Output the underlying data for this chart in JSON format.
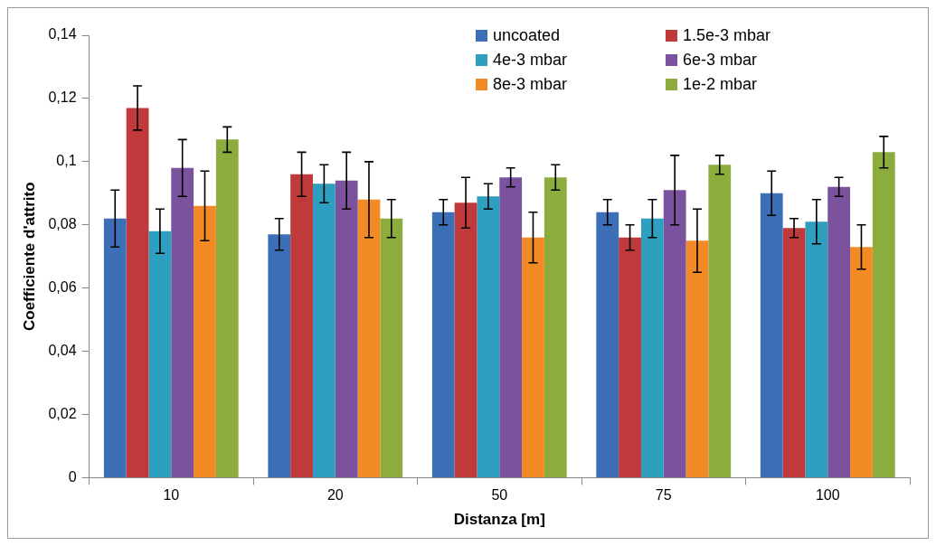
{
  "chart_data": {
    "type": "bar",
    "xlabel": "Distanza [m]",
    "ylabel": "Coefficiente d'attrito",
    "categories": [
      "10",
      "20",
      "50",
      "75",
      "100"
    ],
    "series": [
      {
        "name": "uncoated",
        "color": "#3d6fb6",
        "values": [
          0.082,
          0.077,
          0.084,
          0.084,
          0.09
        ],
        "errors": [
          0.009,
          0.005,
          0.004,
          0.004,
          0.007
        ]
      },
      {
        "name": "1.5e-3 mbar",
        "color": "#c0393b",
        "values": [
          0.117,
          0.096,
          0.087,
          0.076,
          0.079
        ],
        "errors": [
          0.007,
          0.007,
          0.008,
          0.004,
          0.003
        ]
      },
      {
        "name": "4e-3 mbar",
        "color": "#2e9fbf",
        "values": [
          0.078,
          0.093,
          0.089,
          0.082,
          0.081
        ],
        "errors": [
          0.007,
          0.006,
          0.004,
          0.006,
          0.007
        ]
      },
      {
        "name": "6e-3 mbar",
        "color": "#7a529e",
        "values": [
          0.098,
          0.094,
          0.095,
          0.091,
          0.092
        ],
        "errors": [
          0.009,
          0.009,
          0.003,
          0.011,
          0.003
        ]
      },
      {
        "name": "8e-3 mbar",
        "color": "#f28a25",
        "values": [
          0.086,
          0.088,
          0.076,
          0.075,
          0.073
        ],
        "errors": [
          0.011,
          0.012,
          0.008,
          0.01,
          0.007
        ]
      },
      {
        "name": "1e-2 mbar",
        "color": "#8cad3e",
        "values": [
          0.107,
          0.082,
          0.095,
          0.099,
          0.103
        ],
        "errors": [
          0.004,
          0.006,
          0.004,
          0.003,
          0.005
        ]
      }
    ],
    "ylim": [
      0,
      0.14
    ],
    "yticks": [
      {
        "value": 0,
        "label": "0"
      },
      {
        "value": 0.02,
        "label": "0,02"
      },
      {
        "value": 0.04,
        "label": "0,04"
      },
      {
        "value": 0.06,
        "label": "0,06"
      },
      {
        "value": 0.08,
        "label": "0,08"
      },
      {
        "value": 0.1,
        "label": "0,1"
      },
      {
        "value": 0.12,
        "label": "0,12"
      },
      {
        "value": 0.14,
        "label": "0,14"
      }
    ],
    "grid": false,
    "legend": "top right"
  }
}
